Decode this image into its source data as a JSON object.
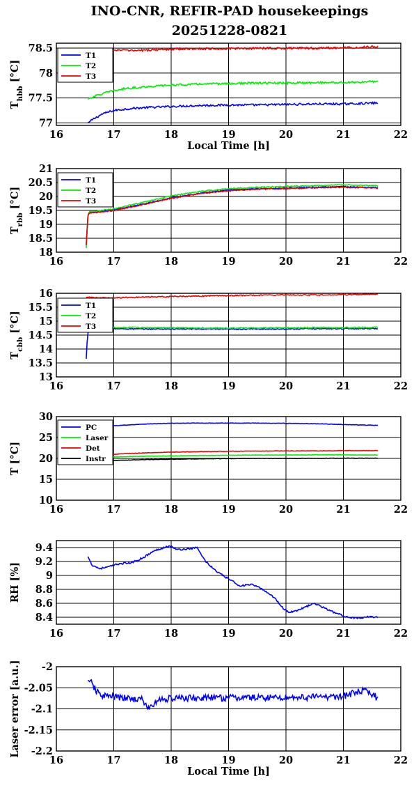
{
  "title": {
    "line1": "INO-CNR, REFIR-PAD housekeepings",
    "line2": "20251228-0821"
  },
  "colors": {
    "T1": "#0000ff",
    "T2": "#00ee00",
    "T3": "#ee0000",
    "PC": "#0000ff",
    "Laser": "#00ee00",
    "Det": "#ee0000",
    "Instr": "#000000"
  },
  "chart_data": [
    {
      "type": "line",
      "ylabel": "T_hbb [°C]",
      "ylabel_main": "T",
      "ylabel_sub": "hbb",
      "ylabel_tail": " [°C]",
      "xlabel": "Local Time [h]",
      "xlim": [
        16,
        22
      ],
      "ylim": [
        76.95,
        78.6
      ],
      "xticks": [
        "16",
        "17",
        "18",
        "19",
        "20",
        "21",
        "22"
      ],
      "yticks": [
        {
          "v": 77,
          "label": "77"
        },
        {
          "v": 77.5,
          "label": "77.5"
        },
        {
          "v": 78,
          "label": "78"
        },
        {
          "v": 78.5,
          "label": "78.5"
        }
      ],
      "grid": true,
      "legend": "top-left",
      "noise": 0.02,
      "series": [
        {
          "name": "T1",
          "color_key": "T1",
          "x": [
            16.55,
            16.65,
            16.8,
            17.0,
            17.3,
            17.6,
            18.0,
            18.5,
            19.0,
            19.5,
            20.0,
            20.5,
            21.0,
            21.6
          ],
          "y": [
            77.0,
            77.08,
            77.18,
            77.25,
            77.29,
            77.31,
            77.33,
            77.35,
            77.36,
            77.36,
            77.37,
            77.38,
            77.38,
            77.4
          ]
        },
        {
          "name": "T2",
          "color_key": "T2",
          "x": [
            16.55,
            16.7,
            16.9,
            17.2,
            17.5,
            18.0,
            18.5,
            19.0,
            19.5,
            20.0,
            20.5,
            21.0,
            21.6
          ],
          "y": [
            77.48,
            77.55,
            77.62,
            77.69,
            77.72,
            77.76,
            77.78,
            77.79,
            77.8,
            77.8,
            77.81,
            77.81,
            77.83
          ]
        },
        {
          "name": "T3",
          "color_key": "T3",
          "x": [
            16.55,
            16.65,
            16.9,
            17.3,
            17.6,
            18.0,
            18.5,
            19.0,
            19.5,
            20.0,
            20.5,
            21.0,
            21.6
          ],
          "y": [
            78.33,
            78.42,
            78.47,
            78.45,
            78.46,
            78.48,
            78.49,
            78.49,
            78.5,
            78.5,
            78.5,
            78.51,
            78.53
          ]
        }
      ]
    },
    {
      "type": "line",
      "ylabel": "T_rbb [°C]",
      "ylabel_main": "T",
      "ylabel_sub": "rbb",
      "ylabel_tail": " [°C]",
      "xlabel": "",
      "xlim": [
        16,
        22
      ],
      "ylim": [
        18,
        21
      ],
      "xticks": [
        "16",
        "17",
        "18",
        "19",
        "20",
        "21",
        "22"
      ],
      "yticks": [
        {
          "v": 18,
          "label": "18"
        },
        {
          "v": 18.5,
          "label": "18.5"
        },
        {
          "v": 19,
          "label": "19"
        },
        {
          "v": 19.5,
          "label": "19.5"
        },
        {
          "v": 20,
          "label": "20"
        },
        {
          "v": 20.5,
          "label": "20.5"
        },
        {
          "v": 21,
          "label": "21"
        }
      ],
      "grid": true,
      "legend": "top-left",
      "noise": 0.018,
      "series": [
        {
          "name": "T1",
          "color_key": "T1",
          "x": [
            16.52,
            16.55,
            16.57,
            16.6,
            16.8,
            17.0,
            17.5,
            18.0,
            18.5,
            19.0,
            19.5,
            20.0,
            20.5,
            21.0,
            21.6
          ],
          "y": [
            18.25,
            19.3,
            19.42,
            19.42,
            19.46,
            19.52,
            19.72,
            19.95,
            20.12,
            20.23,
            20.28,
            20.3,
            20.33,
            20.35,
            20.32
          ]
        },
        {
          "name": "T2",
          "color_key": "T2",
          "x": [
            16.52,
            16.55,
            16.57,
            16.6,
            16.8,
            17.0,
            17.5,
            18.0,
            18.5,
            19.0,
            19.5,
            20.0,
            20.5,
            21.0,
            21.6
          ],
          "y": [
            18.15,
            19.3,
            19.44,
            19.45,
            19.5,
            19.56,
            19.78,
            20.02,
            20.18,
            20.28,
            20.33,
            20.36,
            20.39,
            20.42,
            20.38
          ]
        },
        {
          "name": "T3",
          "color_key": "T3",
          "x": [
            16.52,
            16.55,
            16.57,
            16.6,
            16.8,
            17.0,
            17.5,
            18.0,
            18.5,
            19.0,
            19.5,
            20.0,
            20.5,
            21.0,
            21.6
          ],
          "y": [
            18.25,
            19.3,
            19.4,
            19.41,
            19.44,
            19.5,
            19.7,
            19.93,
            20.1,
            20.2,
            20.26,
            20.28,
            20.31,
            20.33,
            20.3
          ]
        }
      ]
    },
    {
      "type": "line",
      "ylabel": "T_cbb [°C]",
      "ylabel_main": "T",
      "ylabel_sub": "cbb",
      "ylabel_tail": " [°C]",
      "xlabel": "",
      "xlim": [
        16,
        22
      ],
      "ylim": [
        13,
        16
      ],
      "xticks": [
        "16",
        "17",
        "18",
        "19",
        "20",
        "21",
        "22"
      ],
      "yticks": [
        {
          "v": 13,
          "label": "13"
        },
        {
          "v": 13.5,
          "label": "13.5"
        },
        {
          "v": 14,
          "label": "14"
        },
        {
          "v": 14.5,
          "label": "14.5"
        },
        {
          "v": 15,
          "label": "15"
        },
        {
          "v": 15.5,
          "label": "15.5"
        },
        {
          "v": 16,
          "label": "16"
        }
      ],
      "grid": true,
      "legend": "top-left",
      "noise": 0.02,
      "series": [
        {
          "name": "T1",
          "color_key": "T1",
          "x": [
            16.52,
            16.54,
            16.56,
            16.6,
            16.8,
            17.0,
            17.5,
            18.0,
            18.5,
            19.0,
            19.5,
            20.0,
            20.5,
            21.0,
            21.6
          ],
          "y": [
            13.65,
            14.4,
            14.72,
            14.76,
            14.74,
            14.73,
            14.72,
            14.72,
            14.72,
            14.71,
            14.72,
            14.72,
            14.73,
            14.73,
            14.74
          ]
        },
        {
          "name": "T2",
          "color_key": "T2",
          "x": [
            16.52,
            16.55,
            16.6,
            16.8,
            17.0,
            17.5,
            18.0,
            18.5,
            19.0,
            19.5,
            20.0,
            20.5,
            21.0,
            21.6
          ],
          "y": [
            14.75,
            14.8,
            14.8,
            14.79,
            14.78,
            14.77,
            14.77,
            14.76,
            14.75,
            14.76,
            14.76,
            14.77,
            14.77,
            14.78
          ]
        },
        {
          "name": "T3",
          "color_key": "T3",
          "x": [
            16.52,
            16.55,
            16.6,
            16.8,
            17.0,
            17.5,
            18.0,
            18.5,
            19.0,
            19.5,
            20.0,
            20.5,
            21.0,
            21.6
          ],
          "y": [
            15.85,
            15.86,
            15.85,
            15.84,
            15.84,
            15.86,
            15.88,
            15.9,
            15.92,
            15.93,
            15.94,
            15.94,
            15.95,
            15.96
          ]
        }
      ]
    },
    {
      "type": "line",
      "ylabel": "T [°C]",
      "ylabel_main": "T [°C]",
      "ylabel_sub": "",
      "ylabel_tail": "",
      "xlabel": "",
      "xlim": [
        16,
        22
      ],
      "ylim": [
        10,
        30
      ],
      "xticks": [
        "16",
        "17",
        "18",
        "19",
        "20",
        "21",
        "22"
      ],
      "yticks": [
        {
          "v": 10,
          "label": "10"
        },
        {
          "v": 15,
          "label": "15"
        },
        {
          "v": 20,
          "label": "20"
        },
        {
          "v": 25,
          "label": "25"
        },
        {
          "v": 30,
          "label": "30"
        }
      ],
      "grid": true,
      "legend": "top-left",
      "noise": 0.05,
      "series": [
        {
          "name": "PC",
          "color_key": "PC",
          "x": [
            16.55,
            16.7,
            17.0,
            17.5,
            18.0,
            18.5,
            19.0,
            19.5,
            20.0,
            20.5,
            21.0,
            21.6
          ],
          "y": [
            26.6,
            27.2,
            27.8,
            28.2,
            28.4,
            28.45,
            28.45,
            28.45,
            28.4,
            28.3,
            28.1,
            27.9
          ]
        },
        {
          "name": "Laser",
          "color_key": "Laser",
          "x": [
            16.55,
            16.8,
            17.0,
            17.5,
            18.0,
            18.5,
            19.0,
            19.5,
            20.0,
            20.5,
            21.0,
            21.6
          ],
          "y": [
            19.8,
            20.2,
            20.35,
            20.5,
            20.6,
            20.7,
            20.75,
            20.8,
            20.8,
            20.85,
            20.85,
            20.8
          ]
        },
        {
          "name": "Det",
          "color_key": "Det",
          "x": [
            16.55,
            16.8,
            17.0,
            17.5,
            18.0,
            18.5,
            19.0,
            19.5,
            20.0,
            20.5,
            21.0,
            21.6
          ],
          "y": [
            20.4,
            20.8,
            21.0,
            21.3,
            21.5,
            21.6,
            21.7,
            21.75,
            21.8,
            21.8,
            21.85,
            21.85
          ]
        },
        {
          "name": "Instr",
          "color_key": "Instr",
          "x": [
            16.55,
            16.8,
            17.0,
            17.5,
            18.0,
            18.5,
            19.0,
            19.5,
            20.0,
            20.5,
            21.0,
            21.6
          ],
          "y": [
            18.9,
            19.3,
            19.5,
            19.7,
            19.8,
            19.9,
            19.95,
            20.0,
            20.0,
            20.0,
            20.05,
            20.05
          ]
        }
      ]
    },
    {
      "type": "line",
      "ylabel": "RH [%]",
      "ylabel_main": "RH [%]",
      "ylabel_sub": "",
      "ylabel_tail": "",
      "xlabel": "",
      "xlim": [
        16,
        22
      ],
      "ylim": [
        8.3,
        9.5
      ],
      "xticks": [
        "16",
        "17",
        "18",
        "19",
        "20",
        "21",
        "22"
      ],
      "yticks": [
        {
          "v": 8.4,
          "label": "8.4"
        },
        {
          "v": 8.6,
          "label": "8.6"
        },
        {
          "v": 8.8,
          "label": "8.8"
        },
        {
          "v": 9,
          "label": "9"
        },
        {
          "v": 9.2,
          "label": "9.2"
        },
        {
          "v": 9.4,
          "label": "9.4"
        }
      ],
      "grid": true,
      "legend": "none",
      "noise": 0.012,
      "series": [
        {
          "name": "",
          "color_key": "PC",
          "x": [
            16.55,
            16.62,
            16.75,
            16.9,
            17.1,
            17.3,
            17.5,
            17.7,
            17.9,
            18.0,
            18.1,
            18.3,
            18.45,
            18.6,
            18.8,
            19.0,
            19.2,
            19.4,
            19.6,
            19.8,
            19.95,
            20.05,
            20.2,
            20.35,
            20.5,
            20.6,
            20.75,
            20.9,
            21.0,
            21.1,
            21.3,
            21.45,
            21.6
          ],
          "y": [
            9.27,
            9.15,
            9.1,
            9.12,
            9.17,
            9.18,
            9.25,
            9.35,
            9.41,
            9.42,
            9.37,
            9.38,
            9.4,
            9.2,
            9.05,
            8.95,
            8.85,
            8.87,
            8.8,
            8.68,
            8.53,
            8.47,
            8.5,
            8.55,
            8.6,
            8.56,
            8.5,
            8.45,
            8.42,
            8.4,
            8.38,
            8.41,
            8.4
          ]
        }
      ]
    },
    {
      "type": "line",
      "ylabel": "Laser error [a.u.]",
      "ylabel_main": "Laser error [a.u.]",
      "ylabel_sub": "",
      "ylabel_tail": "",
      "xlabel": "Local Time [h]",
      "xlim": [
        16,
        22
      ],
      "ylim": [
        -2.2,
        -2.0
      ],
      "xticks": [
        "16",
        "17",
        "18",
        "19",
        "20",
        "21",
        "22"
      ],
      "yticks": [
        {
          "v": -2.2,
          "label": "-2.2"
        },
        {
          "v": -2.15,
          "label": "-2.15"
        },
        {
          "v": -2.1,
          "label": "-2.1"
        },
        {
          "v": -2.05,
          "label": "-2.05"
        },
        {
          "v": -2,
          "label": "-2"
        }
      ],
      "grid": true,
      "legend": "none",
      "noise": 0.008,
      "series": [
        {
          "name": "",
          "color_key": "PC",
          "x": [
            16.55,
            16.62,
            16.7,
            16.8,
            17.0,
            17.2,
            17.5,
            17.6,
            17.8,
            18.0,
            18.5,
            19.0,
            19.5,
            20.0,
            20.5,
            21.0,
            21.2,
            21.35,
            21.5,
            21.6
          ],
          "y": [
            -2.032,
            -2.04,
            -2.06,
            -2.068,
            -2.072,
            -2.075,
            -2.078,
            -2.1,
            -2.078,
            -2.075,
            -2.074,
            -2.074,
            -2.073,
            -2.073,
            -2.072,
            -2.07,
            -2.062,
            -2.058,
            -2.065,
            -2.075
          ]
        }
      ]
    }
  ]
}
